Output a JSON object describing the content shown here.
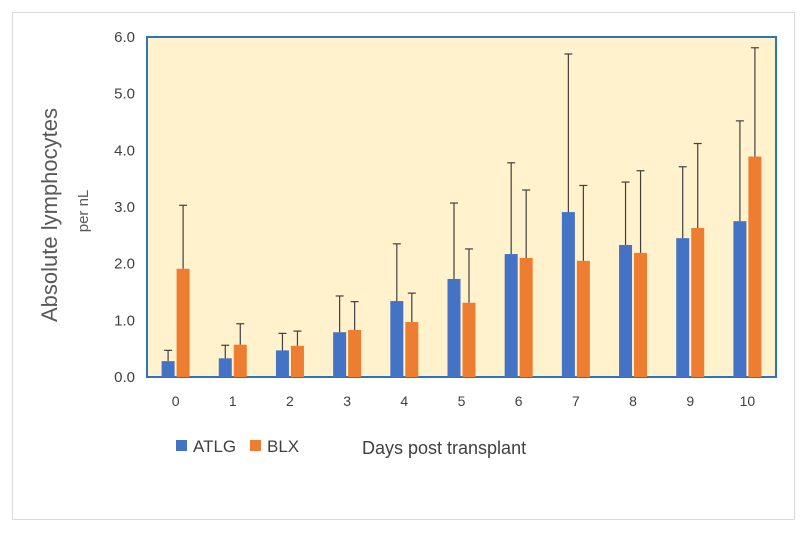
{
  "chart_data": {
    "type": "bar",
    "title": "",
    "xlabel": "Days post transplant",
    "ylabel": "Absolute lymphocytes",
    "ylabel_unit": "per nL",
    "ylim": [
      0,
      6.0
    ],
    "yticks": [
      "0.0",
      "1.0",
      "2.0",
      "3.0",
      "4.0",
      "5.0",
      "6.0"
    ],
    "categories": [
      "0",
      "1",
      "2",
      "3",
      "4",
      "5",
      "6",
      "7",
      "8",
      "9",
      "10"
    ],
    "series": [
      {
        "name": "ATLG",
        "color": "#4472C4",
        "values": [
          0.28,
          0.33,
          0.47,
          0.79,
          1.34,
          1.73,
          2.17,
          2.91,
          2.33,
          2.45,
          2.75
        ],
        "error_upper": [
          0.47,
          0.56,
          0.77,
          1.43,
          2.35,
          3.07,
          3.78,
          5.7,
          3.44,
          3.71,
          4.52
        ]
      },
      {
        "name": "BLX",
        "color": "#ED7D31",
        "values": [
          1.91,
          0.57,
          0.55,
          0.83,
          0.97,
          1.31,
          2.1,
          2.05,
          2.19,
          2.63,
          3.89
        ],
        "error_upper": [
          3.03,
          0.94,
          0.81,
          1.33,
          1.48,
          2.26,
          3.3,
          3.38,
          3.64,
          4.12,
          5.81
        ]
      }
    ],
    "legend_position": "bottom-left",
    "grid": false,
    "plot_background": "#FFF2CC",
    "plot_border": "#2E75B6"
  }
}
